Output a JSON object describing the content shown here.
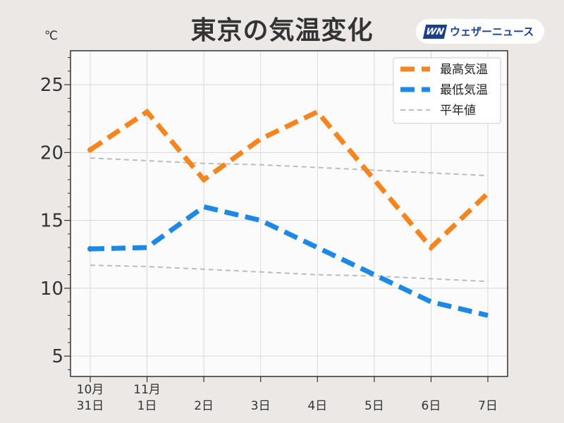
{
  "header": {
    "title": "東京の気温変化",
    "brand_logo": "WN",
    "brand_name": "ウェザーニュース"
  },
  "colors": {
    "background": "#ebe8e6",
    "plot_background": "#fcfbfc",
    "max_temp": "#f5861f",
    "min_temp": "#1e88e5",
    "normal": "#bcbcbc"
  },
  "chart_data": {
    "type": "line",
    "ylabel": "℃",
    "ylim": [
      3.5,
      27.5
    ],
    "yticks": [
      5,
      10,
      15,
      20,
      25
    ],
    "categories": [
      [
        "10月",
        "31日"
      ],
      [
        "11月",
        "1日"
      ],
      [
        "",
        "2日"
      ],
      [
        "",
        "3日"
      ],
      [
        "",
        "4日"
      ],
      [
        "",
        "5日"
      ],
      [
        "",
        "6日"
      ],
      [
        "",
        "7日"
      ]
    ],
    "grid": true,
    "legend_position": "top-right",
    "series": [
      {
        "name": "最高気温",
        "color": "#f5861f",
        "style": "dashed-thick",
        "values": [
          20.2,
          23.0,
          18.0,
          21.0,
          23.0,
          18.0,
          13.0,
          17.0
        ]
      },
      {
        "name": "最低気温",
        "color": "#1e88e5",
        "style": "dashed-thick",
        "values": [
          12.9,
          13.0,
          16.0,
          15.0,
          13.0,
          11.0,
          9.0,
          8.0
        ]
      },
      {
        "name": "平年値",
        "color": "#bcbcbc",
        "style": "dashed-thin",
        "values": [
          19.6,
          19.4,
          19.2,
          19.1,
          18.9,
          18.7,
          18.5,
          18.3
        ]
      },
      {
        "name": "",
        "color": "#bcbcbc",
        "style": "dashed-thin",
        "values": [
          11.7,
          11.6,
          11.4,
          11.2,
          11.0,
          10.9,
          10.7,
          10.5
        ]
      }
    ]
  }
}
